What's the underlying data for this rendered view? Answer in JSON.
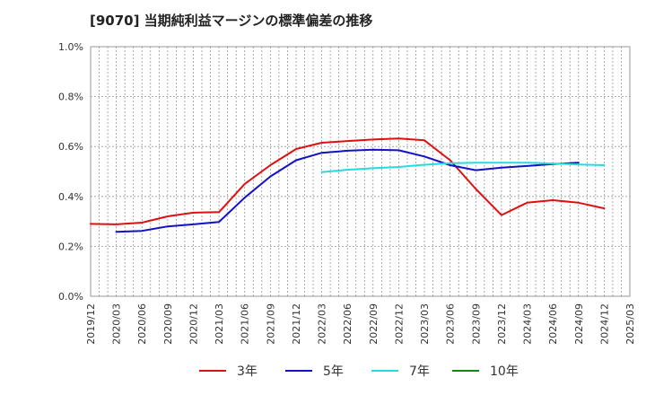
{
  "title": "[9070]  当期純利益マージンの標準偏差の推移",
  "chart_data": {
    "type": "line",
    "title": "[9070]  当期純利益マージンの標準偏差の推移",
    "xlabel": "",
    "ylabel": "",
    "x_ticks": [
      "2019/12",
      "2020/03",
      "2020/06",
      "2020/09",
      "2020/12",
      "2021/03",
      "2021/06",
      "2021/09",
      "2021/12",
      "2022/03",
      "2022/06",
      "2022/09",
      "2022/12",
      "2023/03",
      "2023/06",
      "2023/09",
      "2023/12",
      "2024/03",
      "2024/06",
      "2024/09",
      "2024/12",
      "2025/03"
    ],
    "y_ticks": [
      "0.0%",
      "0.2%",
      "0.4%",
      "0.6%",
      "0.8%",
      "1.0%"
    ],
    "ylim": [
      0,
      1.0
    ],
    "y_unit": "%",
    "grid": true,
    "legend_position": "bottom",
    "series": [
      {
        "name": "3年",
        "color": "#dd1111",
        "start_index": 0,
        "values": [
          0.29,
          0.288,
          0.295,
          0.32,
          0.335,
          0.337,
          0.45,
          0.525,
          0.59,
          0.615,
          0.622,
          0.628,
          0.632,
          0.625,
          0.545,
          0.43,
          0.325,
          0.375,
          0.385,
          0.375,
          0.352
        ]
      },
      {
        "name": "5年",
        "color": "#1111cc",
        "start_index": 1,
        "values": [
          0.258,
          0.262,
          0.28,
          0.288,
          0.298,
          0.395,
          0.48,
          0.545,
          0.575,
          0.583,
          0.587,
          0.585,
          0.56,
          0.525,
          0.505,
          0.515,
          0.522,
          0.53,
          0.535
        ]
      },
      {
        "name": "7年",
        "color": "#22dddd",
        "start_index": 9,
        "values": [
          0.497,
          0.507,
          0.513,
          0.518,
          0.527,
          0.533,
          0.535,
          0.535,
          0.535,
          0.532,
          0.528,
          0.525
        ]
      },
      {
        "name": "10年",
        "color": "#118811",
        "start_index": 0,
        "values": []
      }
    ]
  }
}
